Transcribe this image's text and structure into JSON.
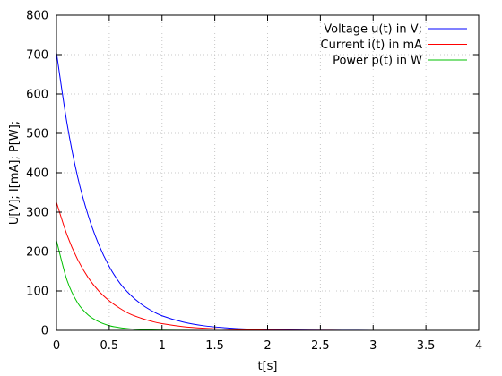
{
  "chart_data": {
    "type": "line",
    "title": "",
    "xlabel": "t[s]",
    "ylabel": "U[V]; I[mA]; P[W];",
    "xlim": [
      0,
      4
    ],
    "ylim": [
      0,
      800
    ],
    "x_ticks": [
      0,
      0.5,
      1,
      1.5,
      2,
      2.5,
      3,
      3.5,
      4
    ],
    "x_tick_labels": [
      "0",
      "0.5",
      "1",
      "1.5",
      "2",
      "2.5",
      "3",
      "3.5",
      "4"
    ],
    "y_ticks": [
      0,
      100,
      200,
      300,
      400,
      500,
      600,
      700,
      800
    ],
    "y_tick_labels": [
      "0",
      "100",
      "200",
      "300",
      "400",
      "500",
      "600",
      "700",
      "800"
    ],
    "grid": true,
    "legend_position": "top-right",
    "x": [
      0,
      0.1,
      0.2,
      0.3,
      0.4,
      0.5,
      0.6,
      0.7,
      0.8,
      0.9,
      1.0,
      1.2,
      1.4,
      1.6,
      1.8,
      2.0,
      2.2,
      2.4,
      2.6,
      2.8,
      3.0,
      3.5,
      4.0
    ],
    "series": [
      {
        "name": "Voltage u(t) in V;",
        "color": "#0000ff",
        "values": [
          705,
          525,
          390,
          292,
          218,
          162,
          120,
          90,
          67,
          50,
          37,
          21,
          11.5,
          6.5,
          3.5,
          2,
          1.1,
          0.6,
          0.35,
          0.2,
          0.1,
          0.03,
          0.01
        ]
      },
      {
        "name": "Current i(t) in mA",
        "color": "#ff0000",
        "values": [
          325,
          242,
          180,
          134,
          100,
          75,
          56,
          41,
          31,
          23,
          17,
          9.5,
          5.3,
          3,
          1.6,
          0.9,
          0.5,
          0.3,
          0.15,
          0.09,
          0.05,
          0.01,
          0
        ]
      },
      {
        "name": "Power p(t) in W",
        "color": "#00c000",
        "values": [
          228,
          127,
          70,
          39,
          22,
          12,
          6.7,
          3.7,
          2.1,
          1.2,
          0.65,
          0.2,
          0.06,
          0.02,
          0.01,
          0,
          0,
          0,
          0,
          0,
          0,
          0,
          0
        ]
      }
    ]
  }
}
